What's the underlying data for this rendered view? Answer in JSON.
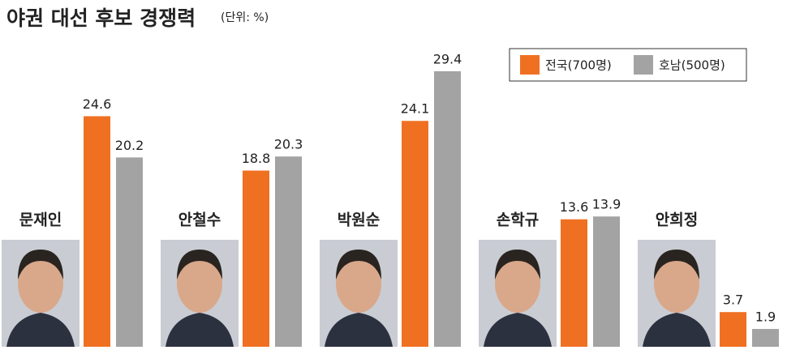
{
  "chart_data": {
    "type": "bar",
    "title": "야권 대선 후보 경쟁력",
    "subtitle": "(단위: %)",
    "categories": [
      "문재인",
      "안철수",
      "박원순",
      "손학규",
      "안희정"
    ],
    "series": [
      {
        "name": "전국(700명)",
        "color": "#f07022",
        "values": [
          24.6,
          18.8,
          24.1,
          13.6,
          3.7
        ]
      },
      {
        "name": "호남(500명)",
        "color": "#a3a3a3",
        "values": [
          20.2,
          20.3,
          29.4,
          13.9,
          1.9
        ]
      }
    ],
    "ylim": [
      0,
      37
    ]
  }
}
